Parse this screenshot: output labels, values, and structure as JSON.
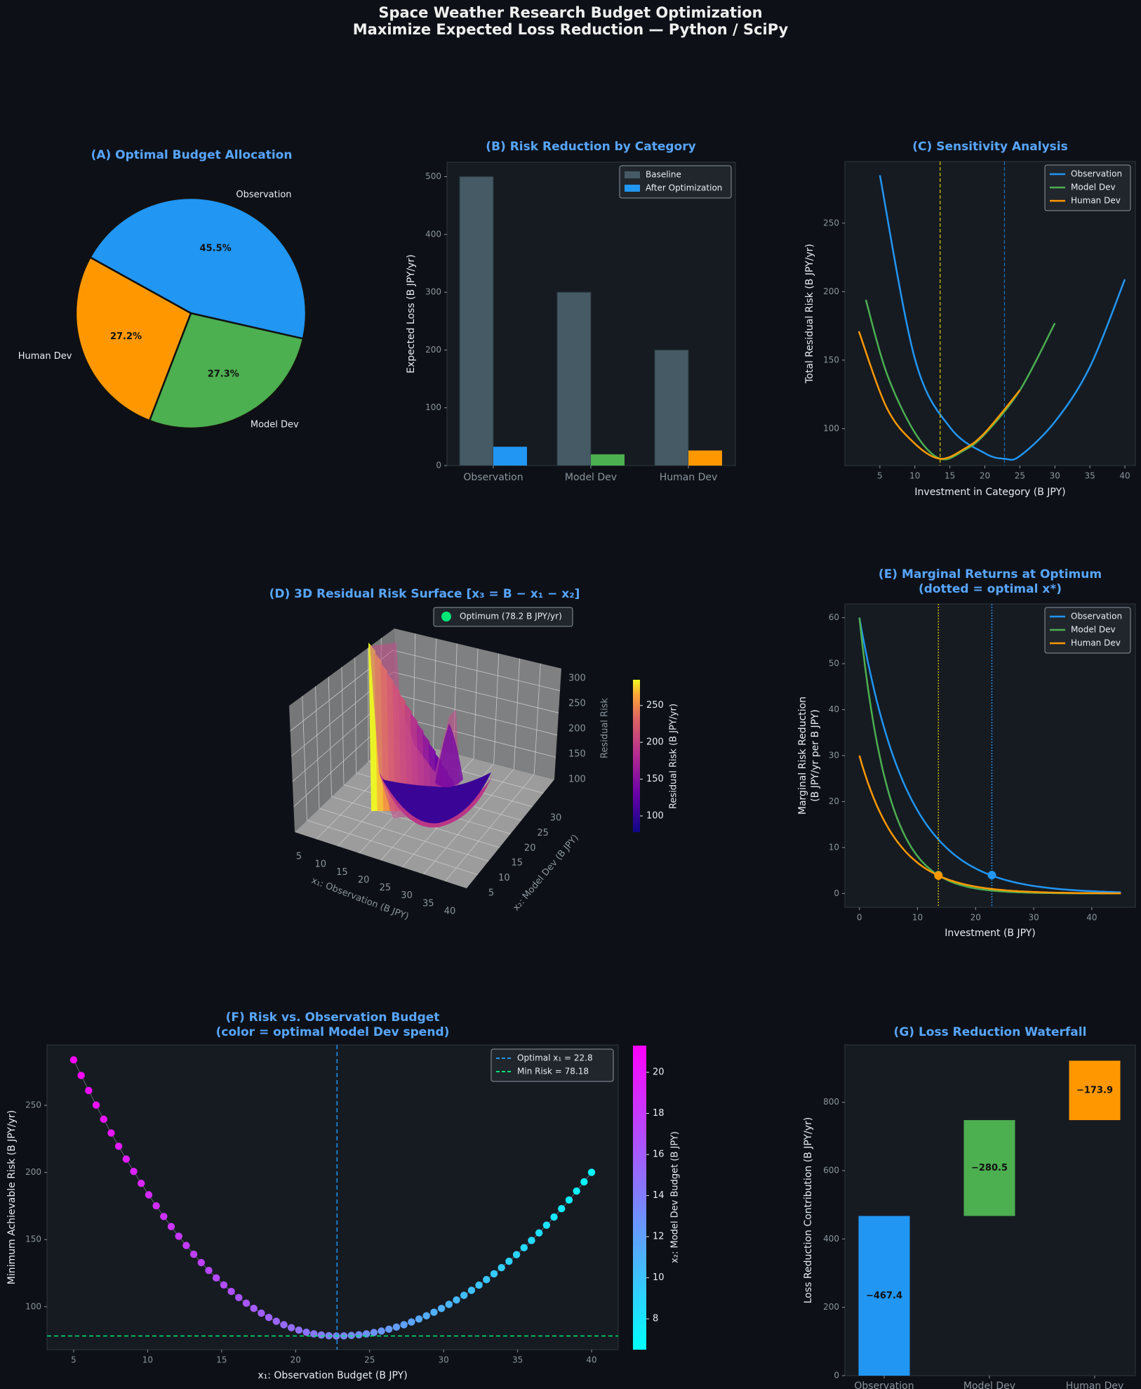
{
  "title": [
    "Space Weather Research Budget Optimization",
    "Maximize Expected Loss Reduction — Python / SciPy"
  ],
  "colors": {
    "observation": "#2196f3",
    "model_dev": "#4caf50",
    "human_dev": "#ff9800",
    "baseline": "#455a64",
    "title_blue": "#58a6ff",
    "optimum": "#00e676"
  },
  "chart_data": [
    {
      "id": "A",
      "type": "pie",
      "title": "(A) Optimal Budget Allocation",
      "labels": [
        "Observation",
        "Model Dev",
        "Human Dev"
      ],
      "values": [
        45.5,
        27.3,
        27.2
      ],
      "pct_labels": [
        "45.5%",
        "27.3%",
        "27.2%"
      ]
    },
    {
      "id": "B",
      "type": "bar",
      "title": "(B) Risk Reduction by Category",
      "categories": [
        "Observation",
        "Model Dev",
        "Human Dev"
      ],
      "series": [
        {
          "name": "Baseline",
          "values": [
            500,
            300,
            200
          ]
        },
        {
          "name": "After Optimization",
          "values": [
            32.6,
            19.5,
            26.1
          ]
        }
      ],
      "ylabel": "Expected Loss (B JPY/yr)",
      "ylim": [
        0,
        525
      ],
      "yticks": [
        0,
        100,
        200,
        300,
        400,
        500
      ],
      "legend": "top-right"
    },
    {
      "id": "C",
      "type": "line",
      "title": "(C) Sensitivity Analysis",
      "xlabel": "Investment in Category (B JPY)",
      "ylabel": "Total Residual Risk (B JPY/yr)",
      "xlim": [
        0,
        41.5
      ],
      "ylim": [
        73,
        295
      ],
      "xticks": [
        5,
        10,
        15,
        20,
        25,
        30,
        35,
        40
      ],
      "yticks": [
        100,
        150,
        200,
        250
      ],
      "series": [
        {
          "name": "Observation",
          "x": [
            5,
            10,
            15,
            20,
            22.8,
            25,
            30,
            35,
            40
          ],
          "y": [
            285,
            151,
            101,
            82,
            78,
            80,
            105,
            145,
            209
          ]
        },
        {
          "name": "Model Dev",
          "x": [
            3,
            6,
            10,
            13.6,
            17,
            20,
            25,
            30
          ],
          "y": [
            194,
            140,
            97,
            78,
            84,
            96,
            128,
            177
          ]
        },
        {
          "name": "Human Dev",
          "x": [
            2,
            6,
            10,
            13.6,
            17,
            20,
            25
          ],
          "y": [
            171,
            115,
            89,
            78,
            85,
            97,
            128
          ]
        }
      ],
      "vlines": [
        22.8,
        13.6,
        13.6
      ],
      "legend": "top-right"
    },
    {
      "id": "D",
      "type": "surface3d",
      "title": "(D) 3D Residual Risk Surface  [x₃ = B − x₁ − x₂]",
      "xlabel": "x₁: Observation (B JPY)",
      "ylabel": "x₂: Model Dev (B JPY)",
      "zlabel": "Residual Risk",
      "xticks": [
        5,
        10,
        15,
        20,
        25,
        30,
        35,
        40
      ],
      "yticks": [
        5,
        10,
        15,
        20,
        25,
        30
      ],
      "zticks": [
        100,
        150,
        200,
        250,
        300
      ],
      "legend_label": "Optimum (78.2 B JPY/yr)",
      "colorbar_label": "Residual Risk (B JPY/yr)",
      "colorbar_ticks": [
        100,
        150,
        200,
        250
      ],
      "colorbar_range": [
        78,
        285
      ]
    },
    {
      "id": "E",
      "type": "line",
      "title": [
        "(E) Marginal Returns at Optimum",
        "(dotted = optimal x*)"
      ],
      "xlabel": "Investment (B JPY)",
      "ylabel": [
        "Marginal Risk Reduction",
        "(B JPY/yr per B JPY)"
      ],
      "xlim": [
        -2.5,
        47.5
      ],
      "ylim": [
        -3,
        63
      ],
      "xticks": [
        0,
        10,
        20,
        30,
        40
      ],
      "yticks": [
        0,
        10,
        20,
        30,
        40,
        50,
        60
      ],
      "series": [
        {
          "name": "Observation",
          "a": 60,
          "k": 0.12
        },
        {
          "name": "Model Dev",
          "a": 60,
          "k": 0.2
        },
        {
          "name": "Human Dev",
          "a": 30,
          "k": 0.15
        }
      ],
      "x_max": 45,
      "optimum_points": [
        {
          "x": 22.8,
          "y": 4.0
        },
        {
          "x": 13.6,
          "y": 4.0
        },
        {
          "x": 13.6,
          "y": 3.9
        }
      ],
      "legend": "top-right"
    },
    {
      "id": "F",
      "type": "scatter",
      "title": [
        "(F) Risk vs. Observation Budget",
        "(color = optimal Model Dev spend)"
      ],
      "xlabel": "x₁: Observation Budget (B JPY)",
      "ylabel": "Minimum Achievable Risk (B JPY/yr)",
      "xlim": [
        3.2,
        41.8
      ],
      "ylim": [
        68,
        295
      ],
      "xticks": [
        5,
        10,
        15,
        20,
        25,
        30,
        35,
        40
      ],
      "yticks": [
        100,
        150,
        200,
        250
      ],
      "x_range": [
        5,
        40
      ],
      "n_points": 70,
      "curve": {
        "xmin": 22.8,
        "ymin": 78.2,
        "left_coeff": 0.649,
        "right_coeff": 0.412
      },
      "color_fit": {
        "x0": 5,
        "c0": 20.9,
        "slope": -0.4
      },
      "vline": {
        "label": "Optimal x₁ = 22.8",
        "x": 22.8
      },
      "hline": {
        "label": "Min Risk = 78.18",
        "y": 78.18
      },
      "colorbar_label": "x₂: Model Dev Budget (B JPY)",
      "colorbar_ticks": [
        8,
        10,
        12,
        14,
        16,
        18,
        20
      ],
      "colorbar_range": [
        6.5,
        21.3
      ]
    },
    {
      "id": "G",
      "type": "bar",
      "title": "(G) Loss Reduction Waterfall",
      "categories": [
        "Observation",
        "Model Dev",
        "Human Dev"
      ],
      "values": [
        467.4,
        280.5,
        173.9
      ],
      "value_labels": [
        "−467.4",
        "−280.5",
        "−173.9"
      ],
      "ylabel": "Loss Reduction Contribution (B JPY/yr)",
      "ylim": [
        0,
        968
      ],
      "yticks": [
        0,
        200,
        400,
        600,
        800
      ]
    }
  ]
}
